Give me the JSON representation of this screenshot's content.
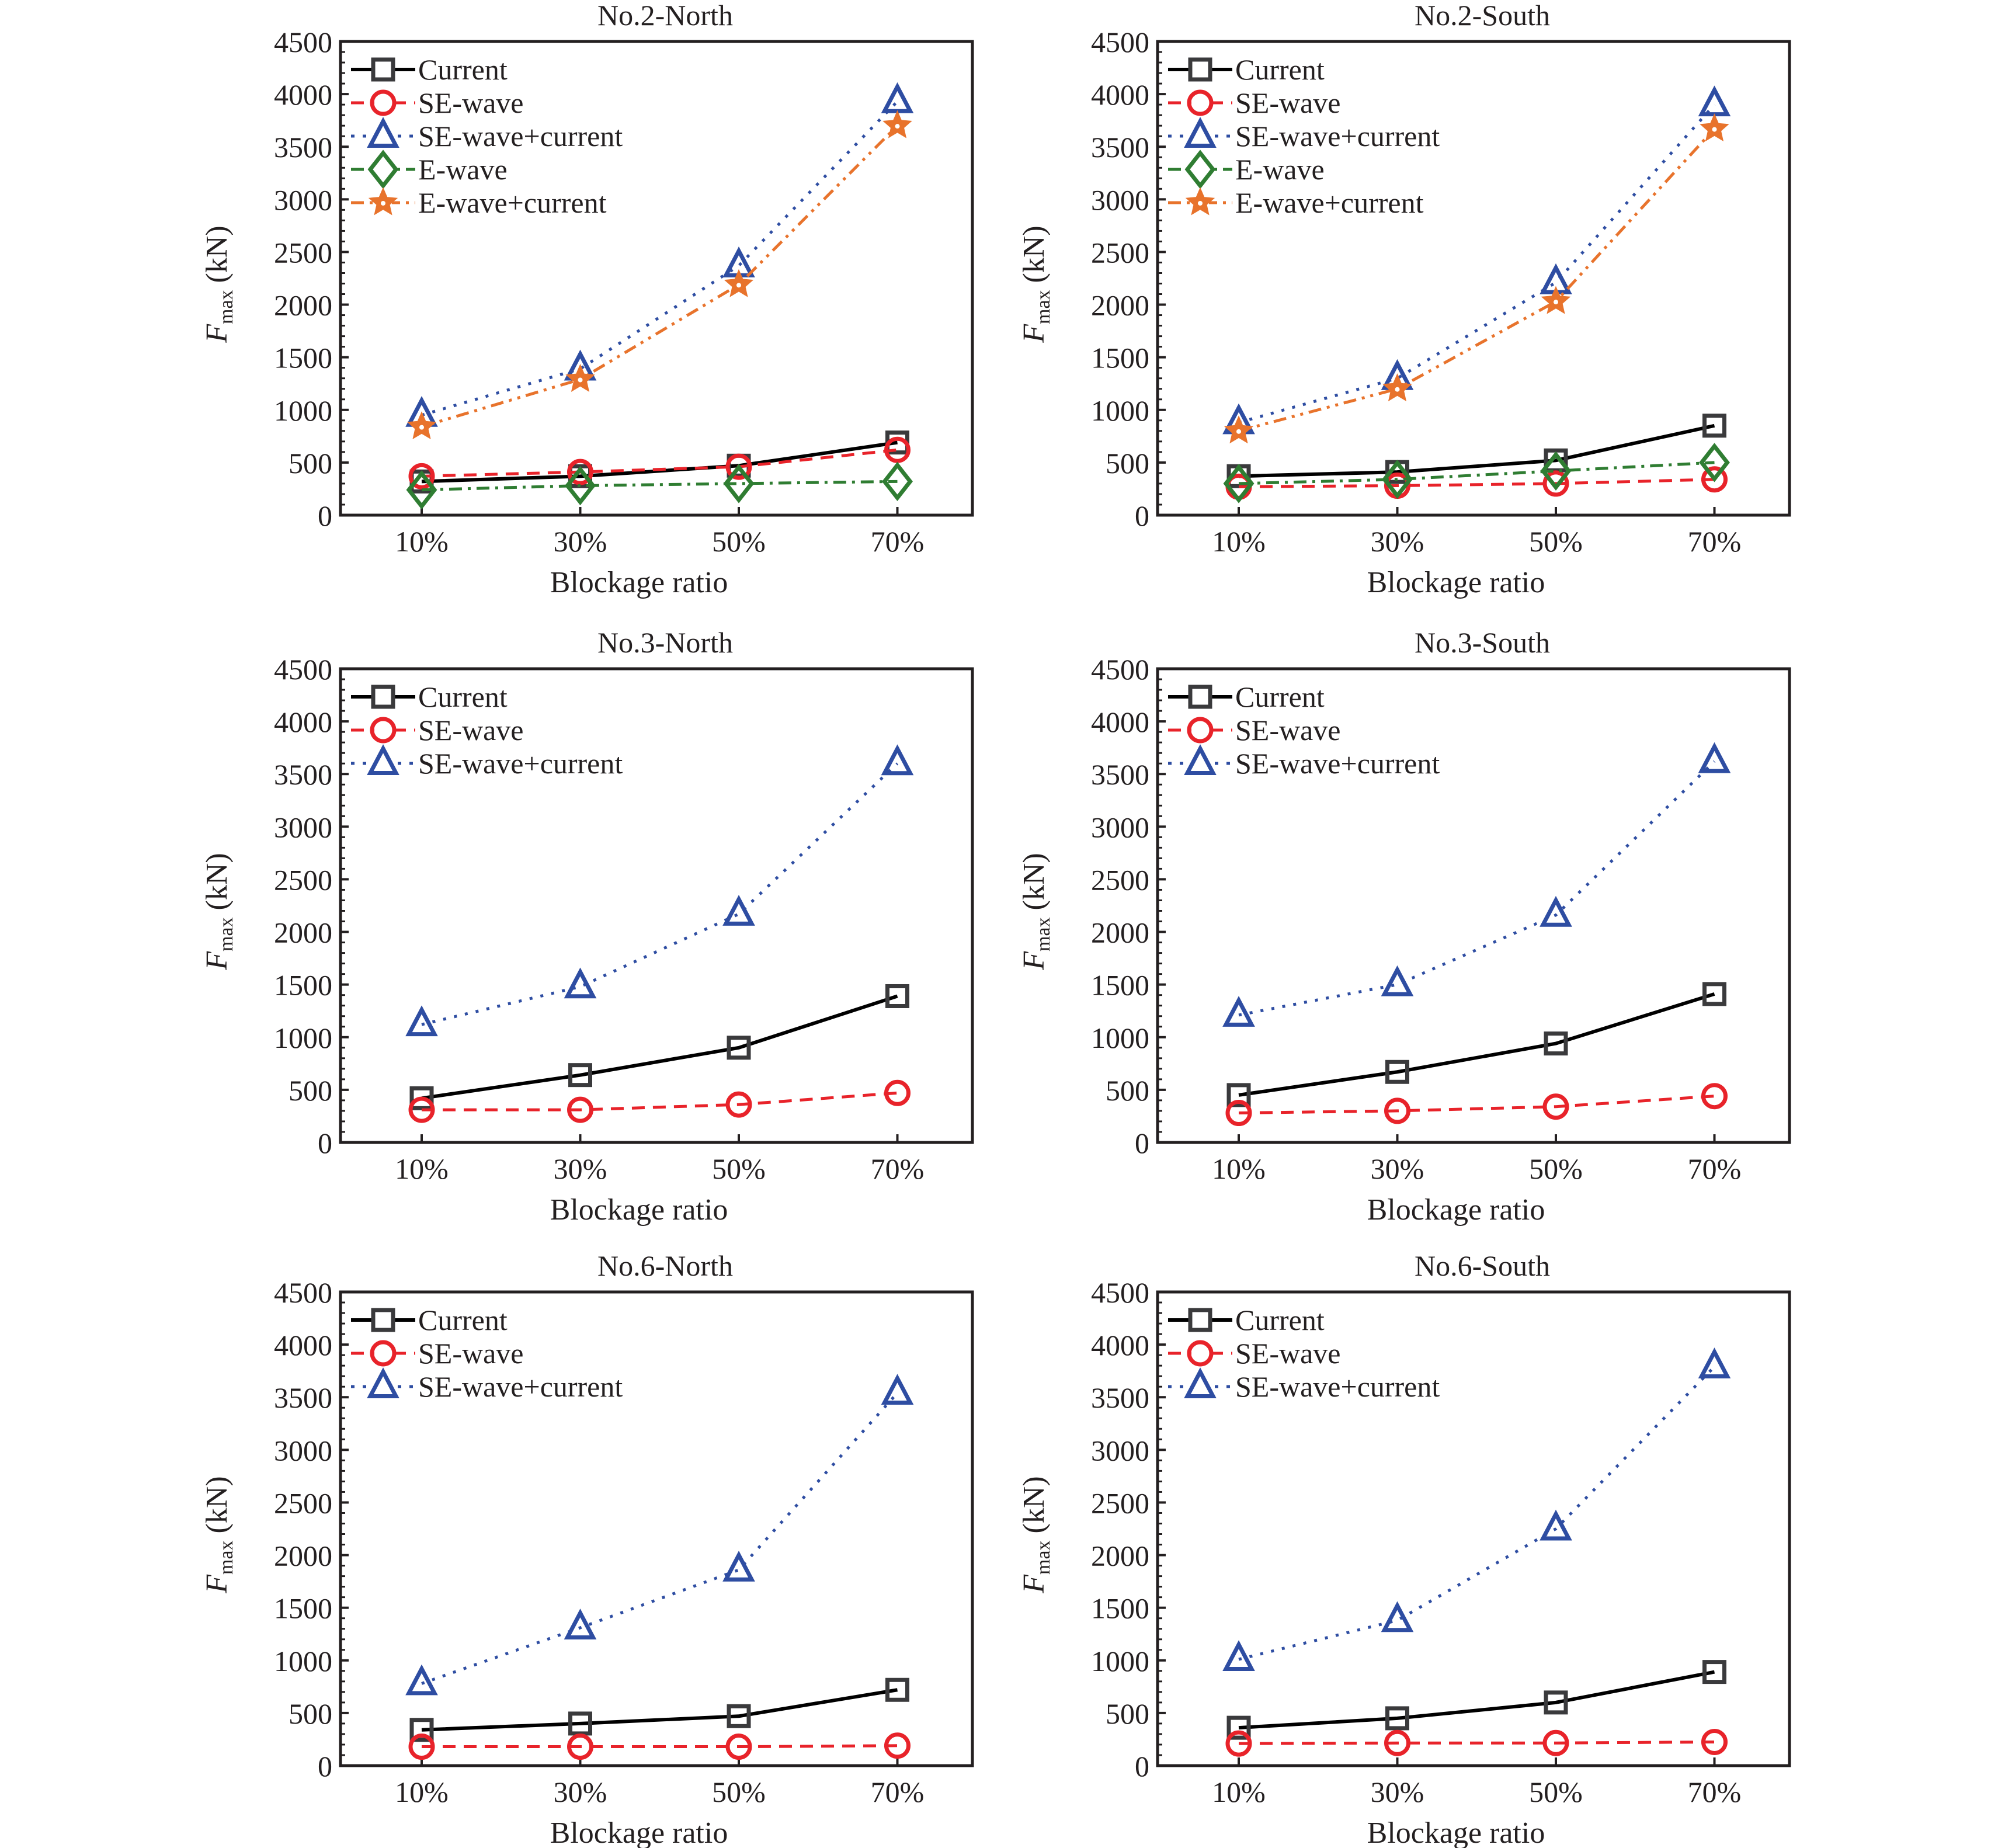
{
  "figure": {
    "panel_count": 6,
    "colors": {
      "current": "#000000",
      "current_marker": "#3a3a3c",
      "se_wave": "#e8232a",
      "se_wave_current": "#2e4da2",
      "e_wave": "#2f7d32",
      "e_wave_current": "#e8732c",
      "axis": "#231f20"
    }
  },
  "chart_data": [
    {
      "type": "line",
      "title": "No.2-North",
      "xlabel": "Blockage ratio",
      "ylabel_main": "F",
      "ylabel_sub": "max",
      "ylabel_unit": "(kN)",
      "categories": [
        "10%",
        "30%",
        "50%",
        "70%"
      ],
      "ylim": [
        0,
        4500
      ],
      "yticks": [
        0,
        500,
        1000,
        1500,
        2000,
        2500,
        3000,
        3500,
        4000,
        4500
      ],
      "grid": false,
      "legend_position": "top-left",
      "series": [
        {
          "key": "current",
          "name": "Current",
          "marker": "square",
          "dash": "solid",
          "values": [
            320,
            370,
            470,
            690
          ]
        },
        {
          "key": "se_wave",
          "name": "SE-wave",
          "marker": "circle",
          "dash": "dashed",
          "values": [
            370,
            410,
            460,
            620
          ]
        },
        {
          "key": "se_wave_current",
          "name": "SE-wave+current",
          "marker": "triangle",
          "dash": "dotted",
          "values": [
            950,
            1390,
            2370,
            3930
          ]
        },
        {
          "key": "e_wave",
          "name": "E-wave",
          "marker": "diamond",
          "dash": "dashdot",
          "values": [
            240,
            280,
            300,
            320
          ]
        },
        {
          "key": "e_wave_current",
          "name": "E-wave+current",
          "marker": "star",
          "dash": "dashdotdot",
          "values": [
            840,
            1290,
            2190,
            3700
          ]
        }
      ]
    },
    {
      "type": "line",
      "title": "No.2-South",
      "xlabel": "Blockage ratio",
      "ylabel_main": "F",
      "ylabel_sub": "max",
      "ylabel_unit": "(kN)",
      "categories": [
        "10%",
        "30%",
        "50%",
        "70%"
      ],
      "ylim": [
        0,
        4500
      ],
      "yticks": [
        0,
        500,
        1000,
        1500,
        2000,
        2500,
        3000,
        3500,
        4000,
        4500
      ],
      "grid": false,
      "legend_position": "top-left",
      "series": [
        {
          "key": "current",
          "name": "Current",
          "marker": "square",
          "dash": "solid",
          "values": [
            370,
            410,
            520,
            850
          ]
        },
        {
          "key": "se_wave",
          "name": "SE-wave",
          "marker": "circle",
          "dash": "dashed",
          "values": [
            270,
            280,
            300,
            340
          ]
        },
        {
          "key": "se_wave_current",
          "name": "SE-wave+current",
          "marker": "triangle",
          "dash": "dotted",
          "values": [
            880,
            1300,
            2210,
            3900
          ]
        },
        {
          "key": "e_wave",
          "name": "E-wave",
          "marker": "diamond",
          "dash": "dashdot",
          "values": [
            300,
            340,
            420,
            500
          ]
        },
        {
          "key": "e_wave_current",
          "name": "E-wave+current",
          "marker": "star",
          "dash": "dashdotdot",
          "values": [
            800,
            1200,
            2030,
            3670
          ]
        }
      ]
    },
    {
      "type": "line",
      "title": "No.3-North",
      "xlabel": "Blockage ratio",
      "ylabel_main": "F",
      "ylabel_sub": "max",
      "ylabel_unit": "(kN)",
      "categories": [
        "10%",
        "30%",
        "50%",
        "70%"
      ],
      "ylim": [
        0,
        4500
      ],
      "yticks": [
        0,
        500,
        1000,
        1500,
        2000,
        2500,
        3000,
        3500,
        4000,
        4500
      ],
      "grid": false,
      "legend_position": "top-left",
      "series": [
        {
          "key": "current",
          "name": "Current",
          "marker": "square",
          "dash": "solid",
          "values": [
            420,
            640,
            900,
            1390
          ]
        },
        {
          "key": "se_wave",
          "name": "SE-wave",
          "marker": "circle",
          "dash": "dashed",
          "values": [
            310,
            310,
            360,
            470
          ]
        },
        {
          "key": "se_wave_current",
          "name": "SE-wave+current",
          "marker": "triangle",
          "dash": "dotted",
          "values": [
            1120,
            1480,
            2170,
            3600
          ]
        }
      ]
    },
    {
      "type": "line",
      "title": "No.3-South",
      "xlabel": "Blockage ratio",
      "ylabel_main": "F",
      "ylabel_sub": "max",
      "ylabel_unit": "(kN)",
      "categories": [
        "10%",
        "30%",
        "50%",
        "70%"
      ],
      "ylim": [
        0,
        4500
      ],
      "yticks": [
        0,
        500,
        1000,
        1500,
        2000,
        2500,
        3000,
        3500,
        4000,
        4500
      ],
      "grid": false,
      "legend_position": "top-left",
      "series": [
        {
          "key": "current",
          "name": "Current",
          "marker": "square",
          "dash": "solid",
          "values": [
            450,
            670,
            940,
            1410
          ]
        },
        {
          "key": "se_wave",
          "name": "SE-wave",
          "marker": "circle",
          "dash": "dashed",
          "values": [
            280,
            300,
            340,
            440
          ]
        },
        {
          "key": "se_wave_current",
          "name": "SE-wave+current",
          "marker": "triangle",
          "dash": "dotted",
          "values": [
            1210,
            1500,
            2160,
            3620
          ]
        }
      ]
    },
    {
      "type": "line",
      "title": "No.6-North",
      "xlabel": "Blockage ratio",
      "ylabel_main": "F",
      "ylabel_sub": "max",
      "ylabel_unit": "(kN)",
      "categories": [
        "10%",
        "30%",
        "50%",
        "70%"
      ],
      "ylim": [
        0,
        4500
      ],
      "yticks": [
        0,
        500,
        1000,
        1500,
        2000,
        2500,
        3000,
        3500,
        4000,
        4500
      ],
      "grid": false,
      "legend_position": "top-left",
      "series": [
        {
          "key": "current",
          "name": "Current",
          "marker": "square",
          "dash": "solid",
          "values": [
            340,
            400,
            470,
            720
          ]
        },
        {
          "key": "se_wave",
          "name": "SE-wave",
          "marker": "circle",
          "dash": "dashed",
          "values": [
            180,
            180,
            180,
            190
          ]
        },
        {
          "key": "se_wave_current",
          "name": "SE-wave+current",
          "marker": "triangle",
          "dash": "dotted",
          "values": [
            780,
            1310,
            1860,
            3540
          ]
        }
      ]
    },
    {
      "type": "line",
      "title": "No.6-South",
      "xlabel": "Blockage ratio",
      "ylabel_main": "F",
      "ylabel_sub": "max",
      "ylabel_unit": "(kN)",
      "categories": [
        "10%",
        "30%",
        "50%",
        "70%"
      ],
      "ylim": [
        0,
        4500
      ],
      "yticks": [
        0,
        500,
        1000,
        1500,
        2000,
        2500,
        3000,
        3500,
        4000,
        4500
      ],
      "grid": false,
      "legend_position": "top-left",
      "series": [
        {
          "key": "current",
          "name": "Current",
          "marker": "square",
          "dash": "solid",
          "values": [
            360,
            450,
            600,
            890
          ]
        },
        {
          "key": "se_wave",
          "name": "SE-wave",
          "marker": "circle",
          "dash": "dashed",
          "values": [
            210,
            215,
            215,
            225
          ]
        },
        {
          "key": "se_wave_current",
          "name": "SE-wave+current",
          "marker": "triangle",
          "dash": "dotted",
          "values": [
            1010,
            1380,
            2250,
            3790
          ]
        }
      ]
    }
  ]
}
